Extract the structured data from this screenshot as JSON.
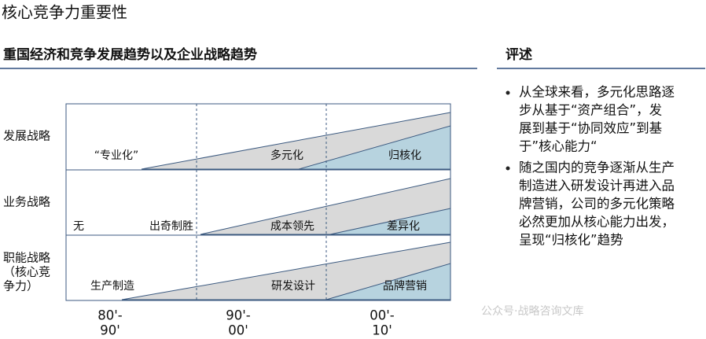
{
  "title": "核心竞争力重要性",
  "left_header": "重国经济和竞争发展趋势以及企业战略趋势",
  "right_header": "评述",
  "rows": [
    {
      "label": [
        "发展战略"
      ],
      "items": [
        "“专业化”",
        "多元化",
        "归核化"
      ]
    },
    {
      "label": [
        "业务战略"
      ],
      "items": [
        "无",
        "出奇制胜",
        "成本领先",
        "差异化"
      ]
    },
    {
      "label": [
        "职能战略",
        "（核心竞",
        "争力）"
      ],
      "items": [
        "生产制造",
        "研发设计",
        "品牌营销"
      ]
    }
  ],
  "periods": [
    [
      "80'-",
      "90'"
    ],
    [
      "90'-",
      "00'"
    ],
    [
      "00'-",
      "10'"
    ]
  ],
  "bullets": [
    [
      "从全球来看，多元化思路逐",
      "步从基于“资产组合”，发",
      "展到基于“协同效应”到基",
      "于”核心能力“"
    ],
    [
      "随之国内的竞争逐渐从生产",
      "制造进入研发设计再进入品",
      "牌营销，公司的多元化策略",
      "必然更加从核心能力出发，",
      "呈现“归核化”趋势"
    ]
  ],
  "watermark": "公众号·战略咨询文库"
}
